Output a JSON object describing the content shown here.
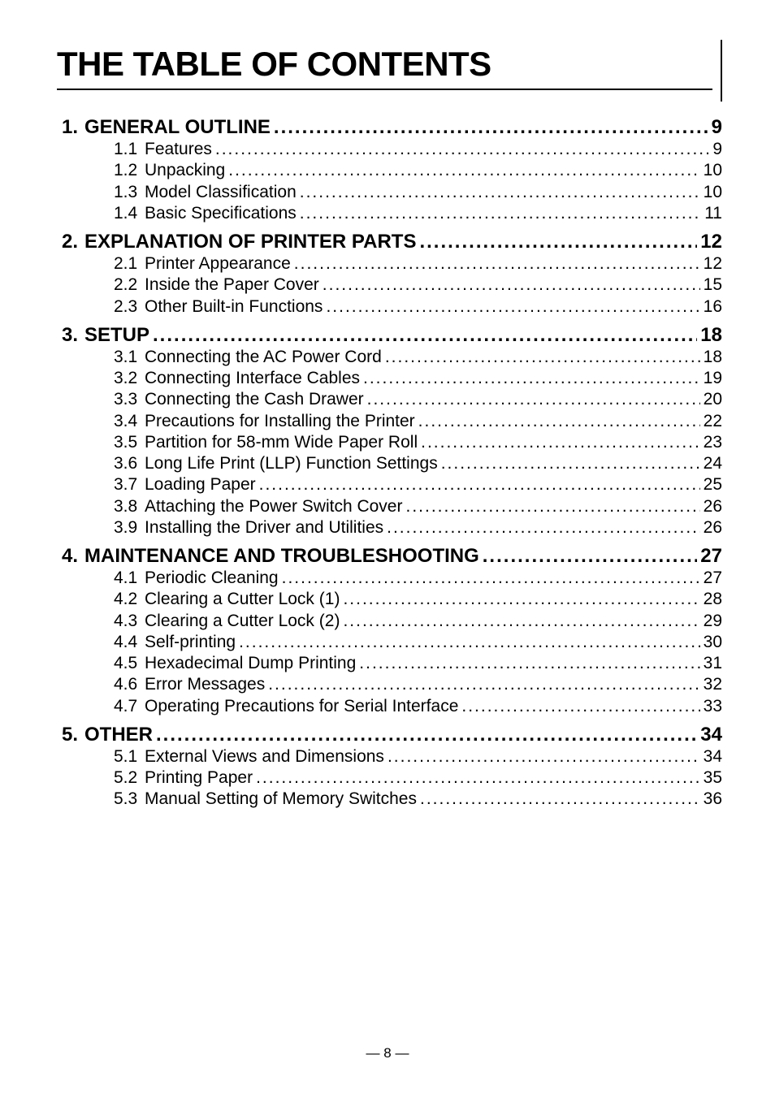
{
  "title": "THE TABLE OF CONTENTS",
  "footer": "— 8 —",
  "sections": [
    {
      "number": "1.",
      "title": "GENERAL OUTLINE",
      "page": "9",
      "subs": [
        {
          "num": "1.1",
          "title": "Features",
          "page": "9"
        },
        {
          "num": "1.2",
          "title": "Unpacking",
          "page": "10"
        },
        {
          "num": "1.3",
          "title": "Model Classification",
          "page": "10"
        },
        {
          "num": "1.4",
          "title": "Basic Specifications",
          "page": "11"
        }
      ]
    },
    {
      "number": "2.",
      "title": "EXPLANATION OF PRINTER PARTS",
      "page": "12",
      "subs": [
        {
          "num": "2.1",
          "title": "Printer Appearance",
          "page": "12"
        },
        {
          "num": "2.2",
          "title": "Inside the Paper Cover",
          "page": "15"
        },
        {
          "num": "2.3",
          "title": "Other Built-in Functions",
          "page": "16"
        }
      ]
    },
    {
      "number": "3.",
      "title": "SETUP",
      "page": "18",
      "subs": [
        {
          "num": "3.1",
          "title": "Connecting the AC Power Cord",
          "page": "18"
        },
        {
          "num": "3.2",
          "title": "Connecting Interface Cables",
          "page": "19"
        },
        {
          "num": "3.3",
          "title": "Connecting the Cash Drawer",
          "page": "20"
        },
        {
          "num": "3.4",
          "title": "Precautions for Installing the Printer",
          "page": "22"
        },
        {
          "num": "3.5",
          "title": "Partition for 58-mm Wide Paper Roll",
          "page": "23"
        },
        {
          "num": "3.6",
          "title": "Long Life Print (LLP) Function Settings",
          "page": "24"
        },
        {
          "num": "3.7",
          "title": "Loading Paper",
          "page": "25"
        },
        {
          "num": "3.8",
          "title": "Attaching the Power Switch Cover",
          "page": "26"
        },
        {
          "num": "3.9",
          "title": "Installing the Driver and Utilities",
          "page": "26"
        }
      ]
    },
    {
      "number": "4.",
      "title": "MAINTENANCE AND TROUBLESHOOTING",
      "page": "27",
      "subs": [
        {
          "num": "4.1",
          "title": "Periodic Cleaning",
          "page": "27"
        },
        {
          "num": "4.2",
          "title": "Clearing a Cutter Lock (1)",
          "page": "28"
        },
        {
          "num": "4.3",
          "title": "Clearing a Cutter Lock (2)",
          "page": "29"
        },
        {
          "num": "4.4",
          "title": "Self-printing",
          "page": "30"
        },
        {
          "num": "4.5",
          "title": "Hexadecimal Dump Printing",
          "page": "31"
        },
        {
          "num": "4.6",
          "title": "Error Messages",
          "page": "32"
        },
        {
          "num": "4.7",
          "title": "Operating Precautions for Serial Interface",
          "page": "33"
        }
      ]
    },
    {
      "number": "5.",
      "title": "OTHER",
      "page": "34",
      "subs": [
        {
          "num": "5.1",
          "title": "External Views and Dimensions",
          "page": "34"
        },
        {
          "num": "5.2",
          "title": "Printing Paper",
          "page": "35"
        },
        {
          "num": "5.3",
          "title": "Manual Setting of Memory Switches",
          "page": "36"
        }
      ]
    }
  ]
}
